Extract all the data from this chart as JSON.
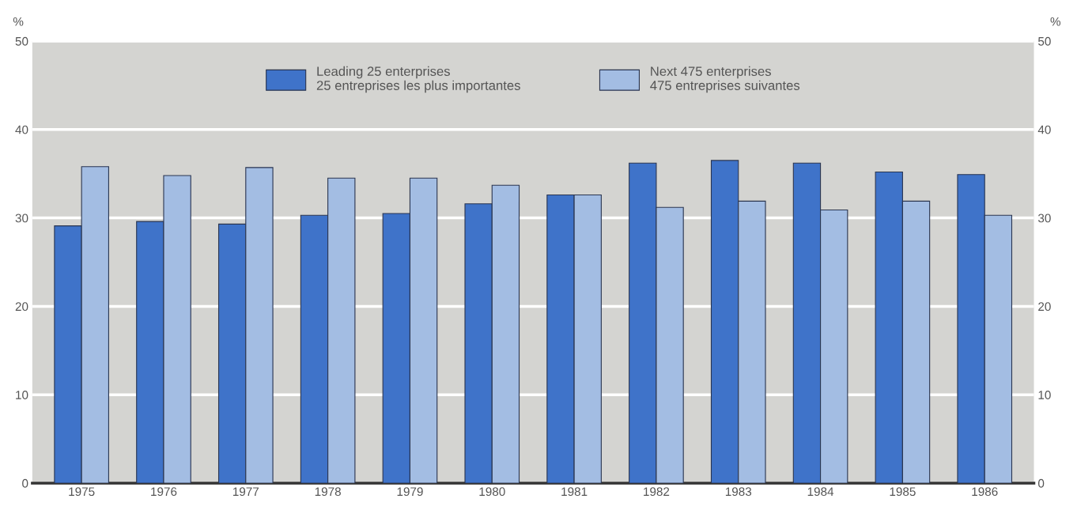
{
  "chart_data": {
    "type": "bar",
    "ylabel": "%",
    "y2label": "%",
    "categories": [
      "1975",
      "1976",
      "1977",
      "1978",
      "1979",
      "1980",
      "1981",
      "1982",
      "1983",
      "1984",
      "1985",
      "1986"
    ],
    "series": [
      {
        "name": "Leading 25 enterprises\n25 entreprises les plus importantes",
        "color": "#3f73c9",
        "values": [
          29.1,
          29.6,
          29.3,
          30.3,
          30.5,
          31.6,
          32.6,
          36.2,
          36.5,
          36.2,
          35.2,
          34.9
        ]
      },
      {
        "name": "Next 475 enterprises\n475 entreprises suivantes",
        "color": "#a3bde3",
        "values": [
          35.8,
          34.8,
          35.7,
          34.5,
          34.5,
          33.7,
          32.6,
          31.2,
          31.9,
          30.9,
          31.9,
          30.3
        ]
      }
    ],
    "ylim": [
      0,
      50
    ],
    "yticks": [
      0,
      10,
      20,
      30,
      40,
      50
    ],
    "y2lim": [
      0,
      50
    ],
    "y2ticks": [
      0,
      10,
      20,
      30,
      40,
      50
    ],
    "grid": "y",
    "legend": "top"
  }
}
